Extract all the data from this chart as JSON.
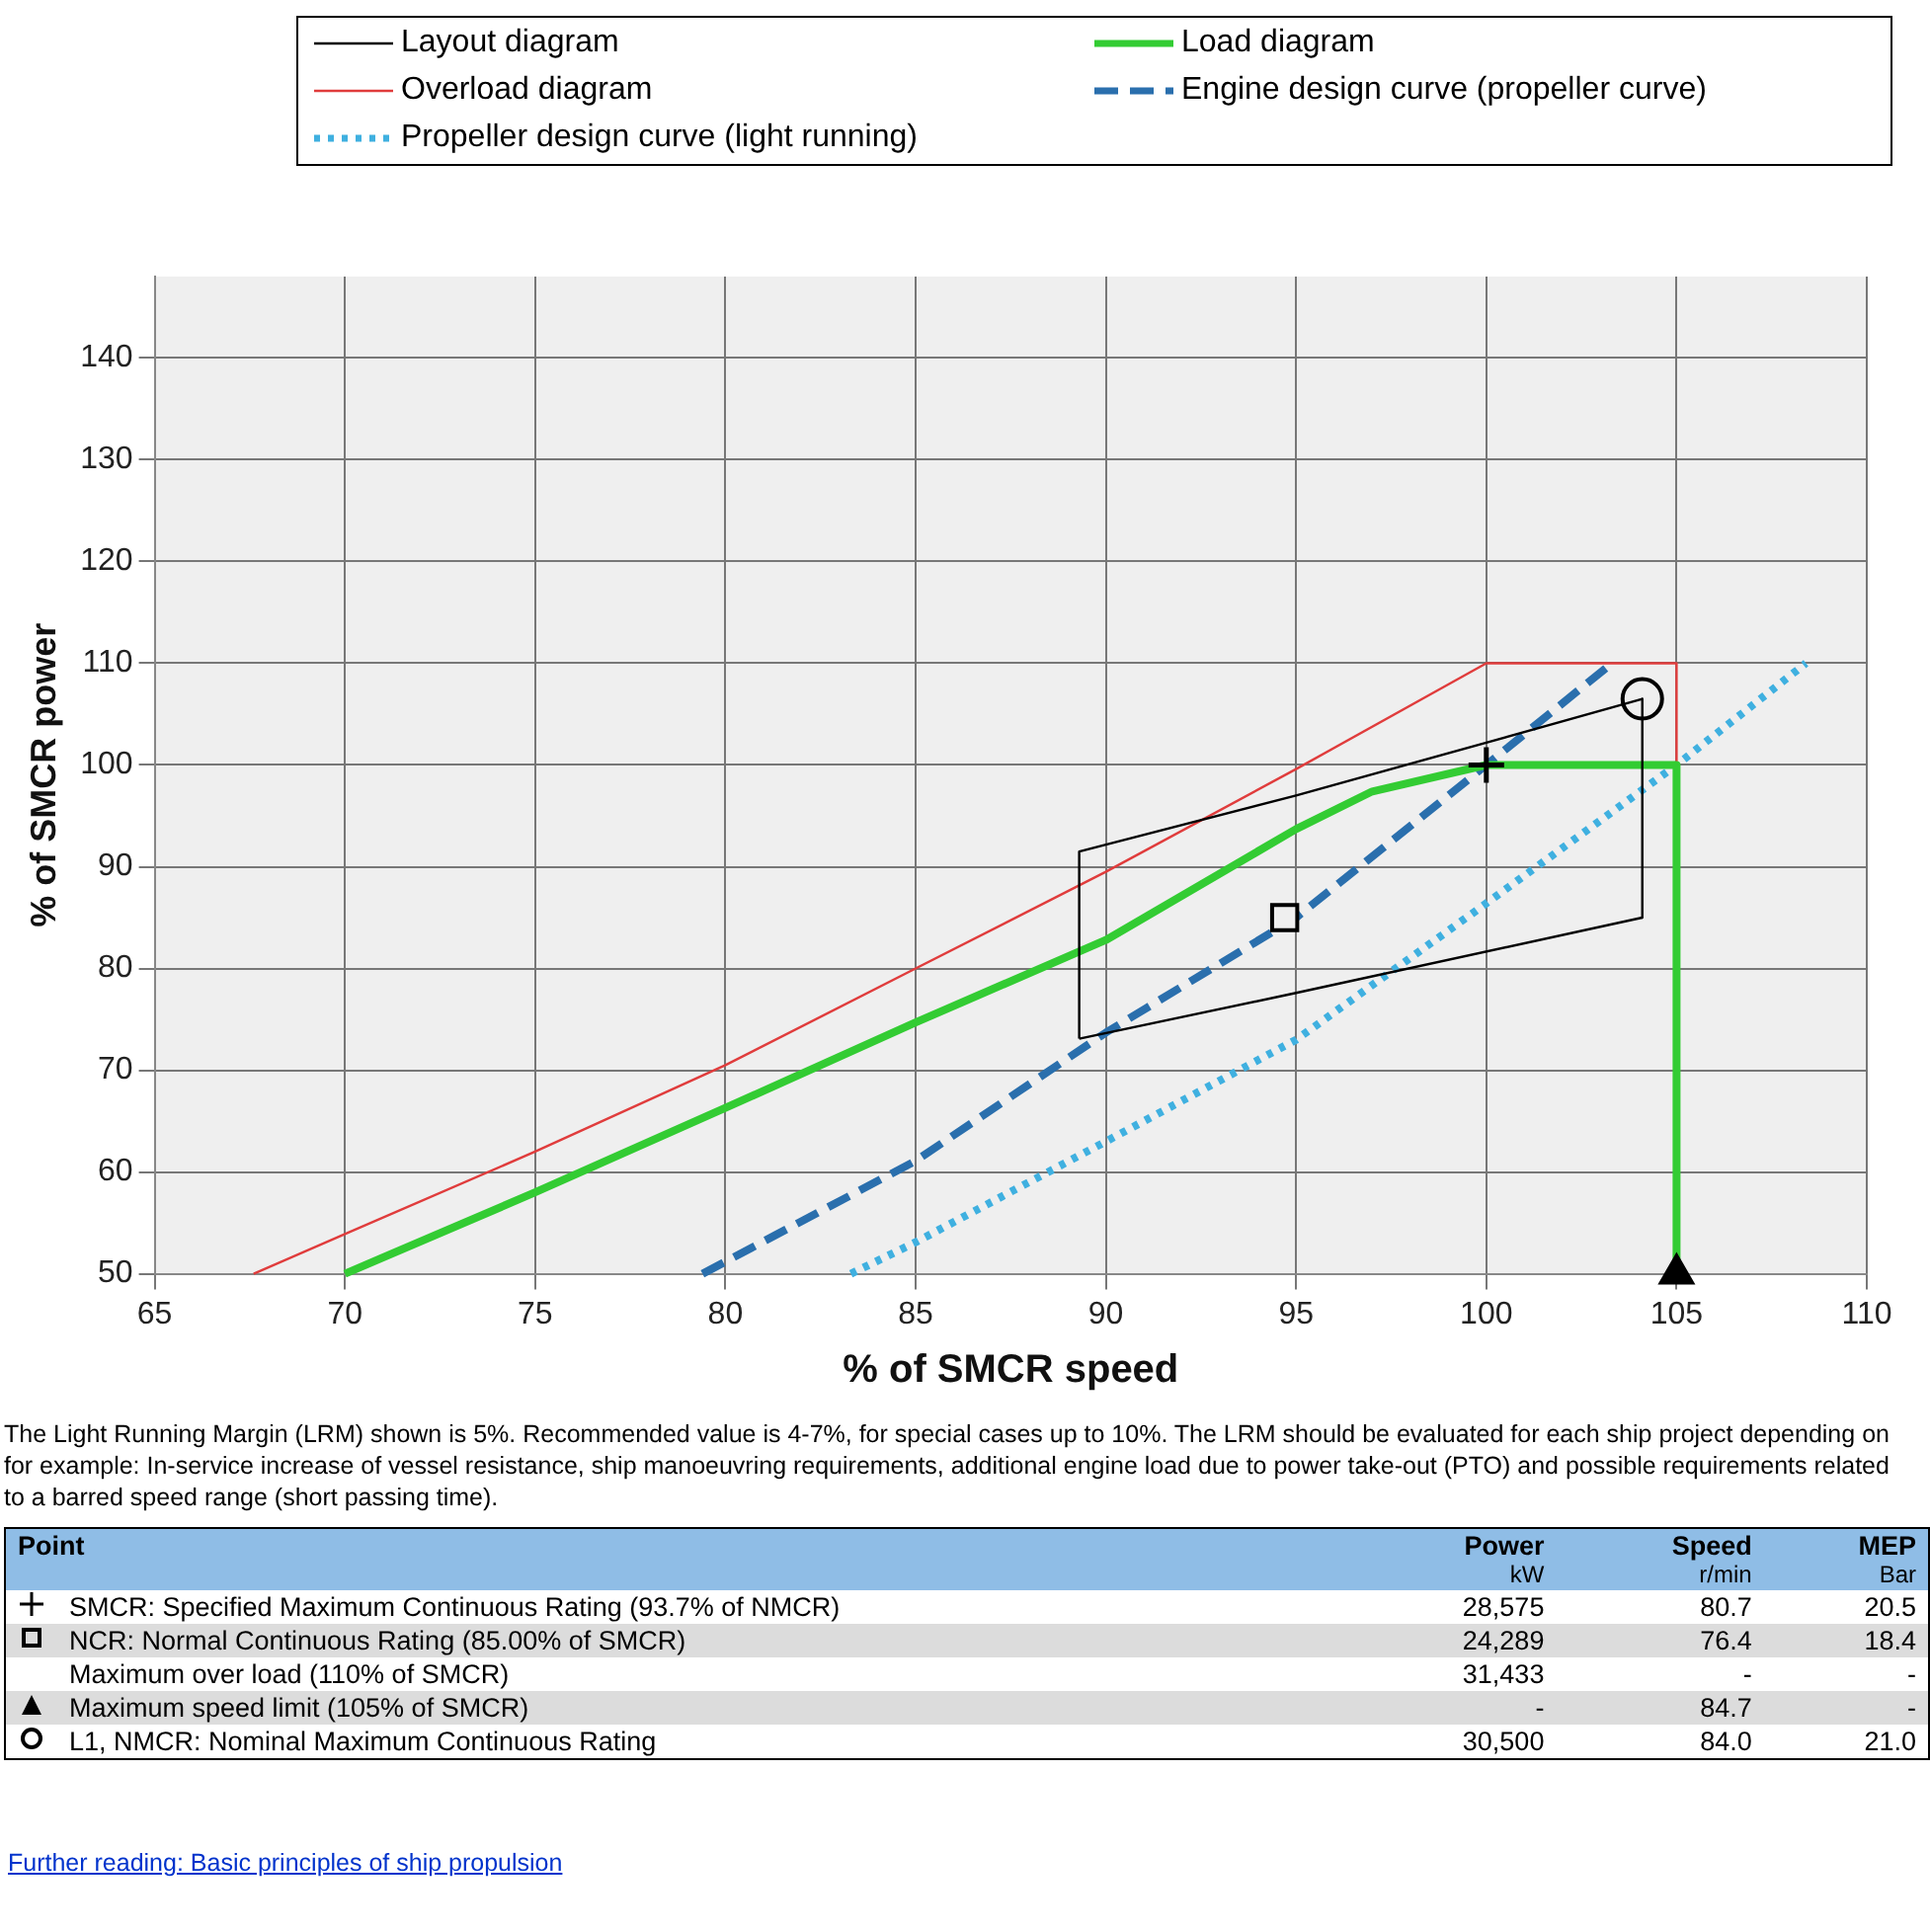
{
  "chart_data": {
    "type": "line",
    "xlabel": "% of SMCR speed",
    "ylabel": "% of SMCR power",
    "xlim": [
      65,
      110
    ],
    "xticks": [
      65,
      70,
      75,
      80,
      85,
      90,
      95,
      100,
      105,
      110
    ],
    "ylim": [
      50,
      148
    ],
    "yticks": [
      50,
      60,
      70,
      80,
      90,
      100,
      110,
      120,
      130,
      140
    ],
    "grid": true,
    "legend": "top",
    "series": [
      {
        "name": "Layout diagram",
        "type": "line",
        "color": "#000000",
        "line_style": "solid",
        "x": [
          89.3,
          89.3,
          95,
          100,
          104.1,
          104.1
        ],
        "values": [
          73.1,
          91.5,
          97,
          102.2,
          106.5,
          85
        ]
      },
      {
        "type": "line",
        "color": "#000000",
        "line_style": "solid",
        "x": [
          104.1,
          95,
          89.3
        ],
        "values": [
          85,
          77.6,
          73.1
        ]
      },
      {
        "name": "Load diagram",
        "type": "line",
        "color": "#33cc33",
        "line_style": "solid",
        "x": [
          70,
          75,
          80,
          85,
          90,
          95,
          97,
          100,
          105,
          105
        ],
        "values": [
          50,
          58,
          66.3,
          74.7,
          82.8,
          93.7,
          97.4,
          100,
          100,
          50
        ]
      },
      {
        "name": "Overload diagram",
        "type": "line",
        "color": "#e03c3c",
        "line_style": "solid",
        "x": [
          67.6,
          70,
          75,
          80,
          85,
          90,
          95,
          100,
          105,
          105
        ],
        "values": [
          50,
          53.9,
          62,
          70.5,
          80,
          89.5,
          99.6,
          110,
          110,
          100
        ]
      },
      {
        "name": "Engine design curve (propeller curve)",
        "type": "line",
        "color": "#2a6fad",
        "line_style": "dashed",
        "x": [
          79.4,
          85,
          90,
          95,
          100,
          103.3
        ],
        "values": [
          50,
          61.1,
          73.7,
          85,
          100,
          110
        ]
      },
      {
        "name": "Propeller design curve (light running)",
        "type": "line",
        "color": "#3fb0e0",
        "line_style": "dotted",
        "x": [
          83.3,
          85,
          90,
          95,
          100,
          105,
          108.4
        ],
        "values": [
          50,
          53.1,
          63,
          73,
          86.4,
          100,
          110
        ]
      },
      {
        "type": "scatter",
        "color": "#000000",
        "marker": "cross",
        "x": [
          100
        ],
        "values": [
          100
        ]
      },
      {
        "type": "scatter",
        "color": "#000000",
        "marker": "square",
        "x": [
          94.7
        ],
        "values": [
          85
        ]
      },
      {
        "type": "scatter",
        "color": "#000000",
        "marker": "circle",
        "x": [
          104.1
        ],
        "values": [
          106.5
        ]
      },
      {
        "type": "scatter",
        "color": "#000000",
        "marker": "triangle",
        "x": [
          105
        ],
        "values": [
          50
        ]
      }
    ],
    "annotations": [
      "The Light Running Margin (LRM) shown is 5%. Recommended value is 4-7%, for special cases up to 10%. The LRM should be evaluated for each ship project depending on for example: In-service increase of vessel resistance, ship manoeuvring requirements, additional engine load due to power take-out (PTO) and possible requirements related to a barred speed range (short passing time).",
      "Point",
      "Power",
      "Speed",
      "MEP",
      "kW",
      "r/min",
      "Bar",
      "SMCR: Specified Maximum Continuous Rating (93.7% of NMCR)",
      "28,575",
      "80.7",
      "20.5",
      "NCR: Normal Continuous Rating (85.00% of SMCR)",
      "24,289",
      "76.4",
      "18.4",
      "Maximum over load (110% of SMCR)",
      "31,433",
      "-",
      "-",
      "Maximum speed limit (105% of SMCR)",
      "-",
      "84.7",
      "-",
      "L1, NMCR: Nominal Maximum Continuous Rating",
      "30,500",
      "84.0",
      "21.0",
      "Further reading: Basic principles of ship propulsion"
    ]
  }
}
